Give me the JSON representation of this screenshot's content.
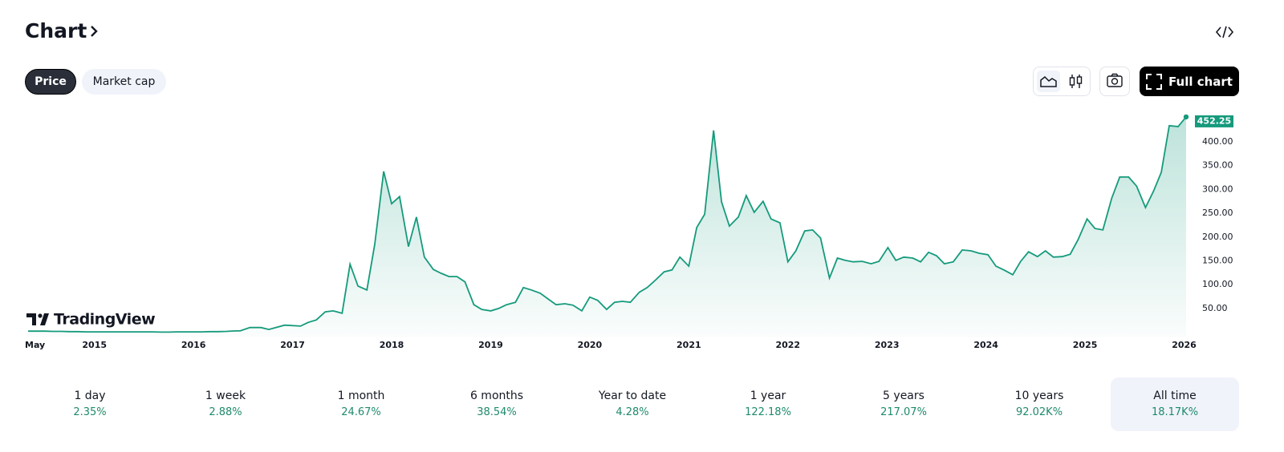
{
  "header": {
    "title": "Chart",
    "tabs": [
      {
        "label": "Price",
        "selected": true
      },
      {
        "label": "Market cap",
        "selected": false
      }
    ],
    "full_chart": "Full chart"
  },
  "watermark": "TradingView",
  "chart_data": {
    "type": "area",
    "color": "#159a7c",
    "grid": false,
    "x": [
      2014.33,
      2014.42,
      2014.5,
      2014.58,
      2014.67,
      2014.75,
      2014.83,
      2014.92,
      2015.0,
      2015.08,
      2015.17,
      2015.25,
      2015.33,
      2015.42,
      2015.5,
      2015.58,
      2015.67,
      2015.75,
      2015.83,
      2015.92,
      2016.0,
      2016.08,
      2016.17,
      2016.25,
      2016.33,
      2016.42,
      2016.47,
      2016.57,
      2016.68,
      2016.76,
      2016.92,
      2017.08,
      2017.16,
      2017.24,
      2017.33,
      2017.41,
      2017.5,
      2017.58,
      2017.66,
      2017.75,
      2017.83,
      2017.92,
      2018.0,
      2018.08,
      2018.17,
      2018.25,
      2018.33,
      2018.42,
      2018.5,
      2018.58,
      2018.66,
      2018.74,
      2018.83,
      2018.91,
      2019.0,
      2019.08,
      2019.16,
      2019.25,
      2019.33,
      2019.41,
      2019.5,
      2019.58,
      2019.66,
      2019.75,
      2019.83,
      2019.92,
      2020.0,
      2020.08,
      2020.17,
      2020.25,
      2020.33,
      2020.41,
      2020.5,
      2020.58,
      2020.66,
      2020.75,
      2020.83,
      2020.91,
      2021.0,
      2021.08,
      2021.16,
      2021.25,
      2021.33,
      2021.41,
      2021.5,
      2021.58,
      2021.66,
      2021.75,
      2021.83,
      2021.92,
      2022.0,
      2022.08,
      2022.17,
      2022.25,
      2022.33,
      2022.42,
      2022.5,
      2022.58,
      2022.66,
      2022.75,
      2022.84,
      2022.92,
      2023.01,
      2023.09,
      2023.17,
      2023.26,
      2023.34,
      2023.42,
      2023.5,
      2023.58,
      2023.67,
      2023.76,
      2023.85,
      2023.93,
      2024.02,
      2024.1,
      2024.18,
      2024.27,
      2024.35,
      2024.43,
      2024.52,
      2024.6,
      2024.68,
      2024.77,
      2024.85,
      2024.93,
      2025.02,
      2025.1,
      2025.18,
      2025.27,
      2025.35,
      2025.44,
      2025.52,
      2025.61,
      2025.69,
      2025.77,
      2025.85,
      2025.94,
      2026.02
    ],
    "values": [
      2.5,
      2.5,
      2.5,
      2,
      2,
      1.5,
      1.5,
      1,
      1,
      1,
      1,
      1,
      1,
      1,
      1,
      1,
      0.5,
      0.5,
      1,
      1,
      1,
      1,
      1.5,
      1.5,
      2,
      3,
      3,
      10,
      10,
      6,
      15,
      13,
      21,
      26,
      43,
      45,
      40,
      143,
      97,
      89,
      185,
      338,
      270,
      285,
      180,
      242,
      158,
      132,
      124,
      117,
      117,
      106,
      58,
      48,
      45,
      50,
      58,
      63,
      94,
      89,
      82,
      70,
      58,
      60,
      57,
      45,
      74,
      67,
      48,
      63,
      65,
      63,
      84,
      94,
      109,
      127,
      131,
      158,
      139,
      220,
      248,
      424,
      274,
      223,
      242,
      287,
      252,
      275,
      238,
      230,
      148,
      171,
      213,
      215,
      198,
      114,
      156,
      151,
      148,
      149,
      144,
      149,
      178,
      151,
      158,
      156,
      148,
      168,
      161,
      144,
      148,
      173,
      171,
      166,
      163,
      139,
      131,
      121,
      149,
      169,
      159,
      171,
      158,
      159,
      164,
      195,
      238,
      218,
      215,
      282,
      326,
      326,
      307,
      262,
      296,
      336,
      434,
      432,
      452.25
    ],
    "xlim": [
      2014.33,
      2026.02
    ],
    "ylim": [
      -10,
      460
    ],
    "xticks": [
      {
        "value": 2014.33,
        "label": "May"
      },
      2015,
      2016,
      2017,
      2018,
      2019,
      2020,
      2021,
      2022,
      2023,
      2024,
      2025,
      2026
    ],
    "yticks": [
      {
        "value": 50,
        "label": "50.00"
      },
      {
        "value": 100,
        "label": "100.00"
      },
      {
        "value": 150,
        "label": "150.00"
      },
      {
        "value": 200,
        "label": "200.00"
      },
      {
        "value": 250,
        "label": "250.00"
      },
      {
        "value": 300,
        "label": "300.00"
      },
      {
        "value": 350,
        "label": "350.00"
      },
      {
        "value": 400,
        "label": "400.00"
      }
    ]
  },
  "periods": [
    {
      "label": "1 day",
      "change": "2.35%"
    },
    {
      "label": "1 week",
      "change": "2.88%"
    },
    {
      "label": "1 month",
      "change": "24.67%"
    },
    {
      "label": "6 months",
      "change": "38.54%"
    },
    {
      "label": "Year to date",
      "change": "4.28%"
    },
    {
      "label": "1 year",
      "change": "122.18%"
    },
    {
      "label": "5 years",
      "change": "217.07%"
    },
    {
      "label": "10 years",
      "change": "92.02K%"
    },
    {
      "label": "All time",
      "change": "18.17K%",
      "selected": true
    }
  ]
}
